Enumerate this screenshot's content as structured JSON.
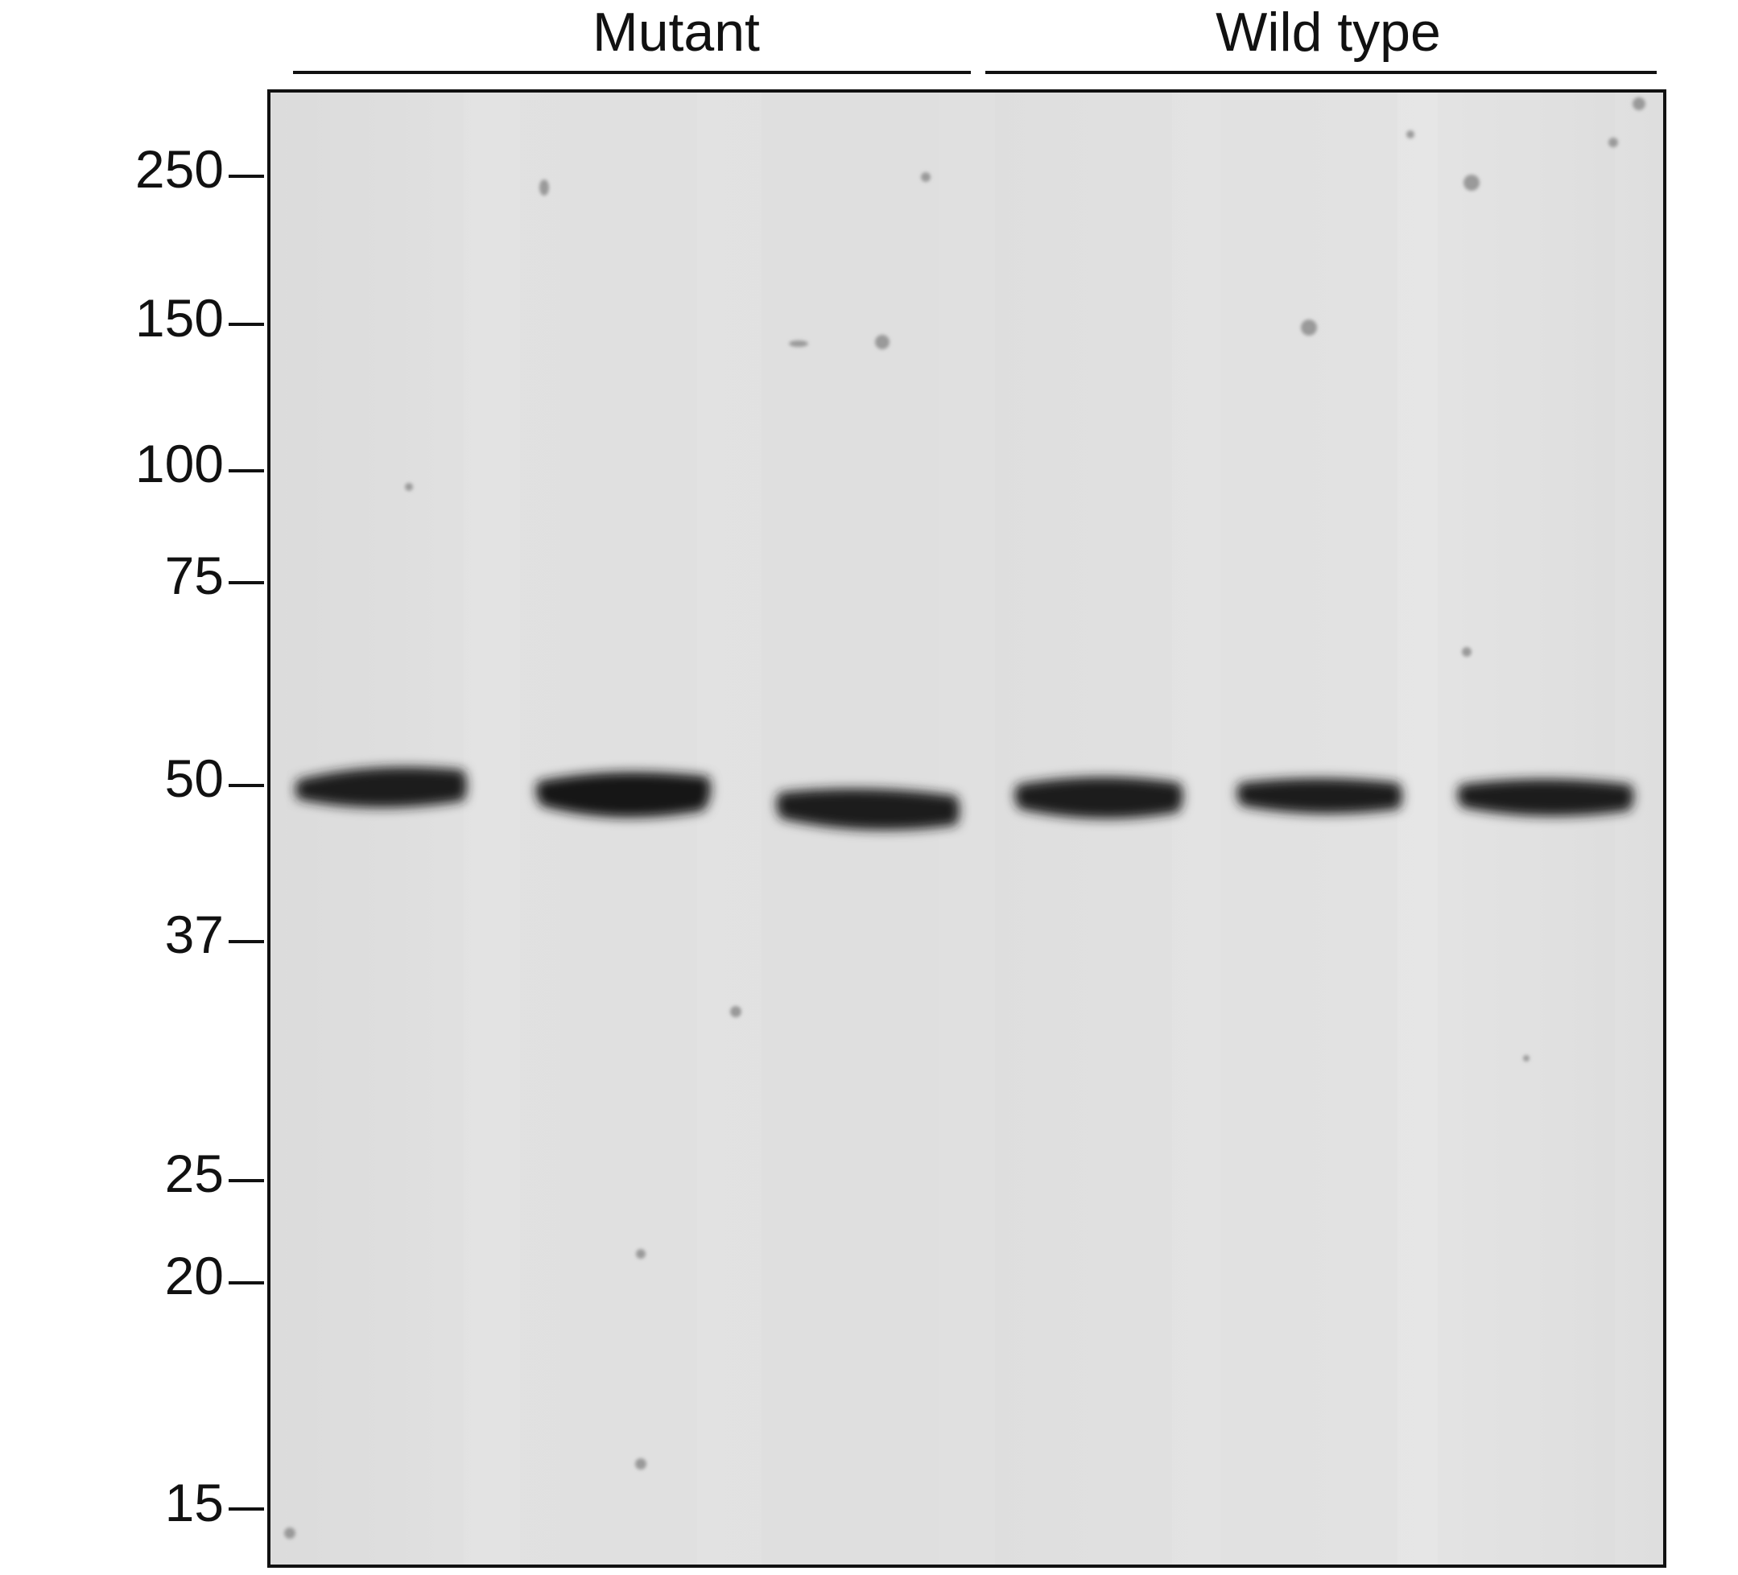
{
  "groups": [
    {
      "label": "Mutant"
    },
    {
      "label": "Wild type"
    }
  ],
  "markers": [
    "250",
    "150",
    "100",
    "75",
    "50",
    "37",
    "25",
    "20",
    "15"
  ],
  "lanes": [
    {
      "group": "Mutant",
      "band_kda": 50
    },
    {
      "group": "Mutant",
      "band_kda": 50
    },
    {
      "group": "Mutant",
      "band_kda": 50
    },
    {
      "group": "Wild type",
      "band_kda": 50
    },
    {
      "group": "Wild type",
      "band_kda": 50
    },
    {
      "group": "Wild type",
      "band_kda": 50
    }
  ],
  "colors": {
    "gel_background": "#e0e0e0",
    "band": "#1a1a1a",
    "ink": "#111111"
  }
}
